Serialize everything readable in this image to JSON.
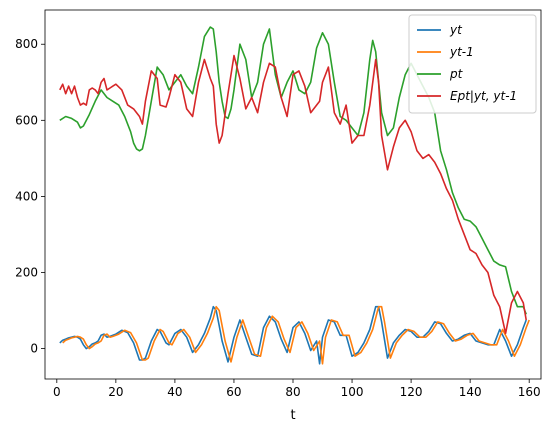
{
  "chart_data": {
    "type": "line",
    "title": "",
    "xlabel": "t",
    "ylabel": "",
    "xlim": [
      -4,
      164
    ],
    "ylim": [
      -80,
      890
    ],
    "x_ticks": [
      0,
      20,
      40,
      60,
      80,
      100,
      120,
      140,
      160
    ],
    "x_tick_labels": [
      "0",
      "20",
      "40",
      "60",
      "80",
      "100",
      "120",
      "140",
      "160"
    ],
    "y_ticks": [
      0,
      200,
      400,
      600,
      800
    ],
    "y_tick_labels": [
      "0",
      "200",
      "400",
      "600",
      "800"
    ],
    "grid": false,
    "legend": "top-right",
    "series": [
      {
        "name": "y_t",
        "label": "yt",
        "color": "#1f77b4",
        "x": [
          1,
          2,
          3,
          4,
          5,
          6,
          7,
          8,
          9,
          10,
          11,
          12,
          13,
          14,
          15,
          16,
          17,
          18,
          19,
          20,
          22,
          24,
          26,
          28,
          29,
          30,
          32,
          34,
          35,
          37,
          38,
          40,
          42,
          44,
          46,
          48,
          50,
          52,
          53,
          54,
          55,
          56,
          58,
          60,
          62,
          64,
          66,
          68,
          70,
          72,
          74,
          76,
          78,
          80,
          82,
          84,
          86,
          88,
          89,
          90,
          92,
          94,
          96,
          98,
          100,
          102,
          104,
          106,
          108,
          109,
          110,
          112,
          114,
          116,
          118,
          120,
          122,
          124,
          126,
          128,
          130,
          132,
          134,
          136,
          138,
          140,
          142,
          144,
          146,
          148,
          150,
          152,
          154,
          156,
          158,
          159
        ],
        "values": [
          15,
          22,
          25,
          28,
          30,
          32,
          30,
          25,
          10,
          0,
          5,
          12,
          15,
          20,
          35,
          38,
          30,
          32,
          35,
          38,
          48,
          42,
          15,
          -30,
          -30,
          -25,
          20,
          50,
          45,
          15,
          10,
          40,
          50,
          30,
          -10,
          10,
          40,
          80,
          110,
          100,
          60,
          20,
          -35,
          30,
          75,
          30,
          -15,
          -20,
          55,
          85,
          70,
          25,
          -10,
          55,
          70,
          40,
          -5,
          20,
          -40,
          30,
          75,
          70,
          35,
          35,
          -20,
          -10,
          15,
          50,
          110,
          110,
          70,
          -25,
          15,
          35,
          50,
          45,
          30,
          30,
          45,
          70,
          65,
          40,
          20,
          25,
          35,
          40,
          20,
          15,
          10,
          10,
          50,
          20,
          -20,
          10,
          55,
          75
        ]
      },
      {
        "name": "y_{t-1}",
        "label": "yt-1",
        "color": "#ff7f0e",
        "x": [
          2,
          3,
          4,
          5,
          6,
          7,
          8,
          9,
          10,
          11,
          12,
          13,
          14,
          15,
          16,
          17,
          18,
          19,
          20,
          21,
          23,
          25,
          27,
          29,
          30,
          31,
          33,
          35,
          36,
          38,
          39,
          41,
          43,
          45,
          47,
          49,
          51,
          53,
          54,
          55,
          56,
          57,
          59,
          61,
          63,
          65,
          67,
          69,
          71,
          73,
          75,
          77,
          79,
          81,
          83,
          85,
          87,
          89,
          90,
          91,
          93,
          95,
          97,
          99,
          101,
          103,
          105,
          107,
          109,
          110,
          111,
          113,
          115,
          117,
          119,
          121,
          123,
          125,
          127,
          129,
          131,
          133,
          135,
          137,
          139,
          141,
          143,
          145,
          147,
          149,
          151,
          153,
          155,
          157,
          159,
          160
        ],
        "values": [
          15,
          22,
          25,
          28,
          30,
          32,
          30,
          25,
          10,
          0,
          5,
          12,
          15,
          20,
          35,
          38,
          30,
          32,
          35,
          38,
          48,
          42,
          15,
          -30,
          -30,
          -25,
          20,
          50,
          45,
          15,
          10,
          40,
          50,
          30,
          -10,
          10,
          40,
          80,
          110,
          100,
          60,
          20,
          -35,
          30,
          75,
          30,
          -15,
          -20,
          55,
          85,
          70,
          25,
          -10,
          55,
          70,
          40,
          -5,
          20,
          -40,
          30,
          75,
          70,
          35,
          35,
          -20,
          -10,
          15,
          50,
          110,
          110,
          70,
          -25,
          15,
          35,
          50,
          45,
          30,
          30,
          45,
          70,
          65,
          40,
          20,
          25,
          35,
          40,
          20,
          15,
          10,
          10,
          50,
          20,
          -20,
          10,
          55,
          75
        ]
      },
      {
        "name": "p_t",
        "label": "pt",
        "color": "#2ca02c",
        "x": [
          1,
          3,
          5,
          7,
          8,
          9,
          11,
          13,
          15,
          17,
          19,
          21,
          23,
          25,
          26,
          27,
          28,
          29,
          30,
          32,
          34,
          36,
          38,
          40,
          42,
          44,
          46,
          48,
          50,
          52,
          53,
          54,
          55,
          56,
          57,
          58,
          59,
          60,
          62,
          64,
          66,
          68,
          70,
          72,
          74,
          76,
          78,
          80,
          82,
          84,
          86,
          88,
          90,
          92,
          94,
          96,
          98,
          100,
          102,
          104,
          106,
          107,
          108,
          110,
          112,
          114,
          116,
          118,
          120,
          122,
          124,
          126,
          128,
          130,
          132,
          134,
          136,
          138,
          140,
          142,
          144,
          146,
          148,
          150,
          152,
          154,
          156,
          158,
          159
        ],
        "values": [
          600,
          610,
          605,
          595,
          580,
          585,
          615,
          650,
          680,
          660,
          650,
          640,
          610,
          570,
          540,
          525,
          520,
          525,
          560,
          650,
          740,
          720,
          680,
          700,
          720,
          690,
          670,
          740,
          820,
          845,
          840,
          780,
          700,
          650,
          610,
          605,
          630,
          680,
          800,
          760,
          660,
          700,
          800,
          840,
          720,
          660,
          700,
          730,
          680,
          670,
          700,
          790,
          830,
          800,
          700,
          610,
          600,
          580,
          560,
          620,
          760,
          810,
          780,
          620,
          560,
          580,
          660,
          720,
          750,
          720,
          690,
          660,
          620,
          520,
          470,
          410,
          370,
          340,
          335,
          320,
          290,
          260,
          230,
          220,
          215,
          150,
          110,
          110,
          90
        ]
      },
      {
        "name": "Ep_t|y_t, y_{t-1}",
        "label": "Ept|yt, yt-1",
        "color": "#d62728",
        "x": [
          1,
          2,
          3,
          4,
          5,
          6,
          7,
          8,
          9,
          10,
          11,
          12,
          13,
          14,
          15,
          16,
          17,
          18,
          19,
          20,
          22,
          24,
          26,
          28,
          29,
          30,
          32,
          34,
          35,
          37,
          38,
          40,
          42,
          44,
          46,
          48,
          50,
          52,
          53,
          54,
          55,
          56,
          58,
          60,
          62,
          64,
          66,
          68,
          70,
          72,
          74,
          76,
          78,
          80,
          82,
          84,
          86,
          88,
          89,
          90,
          92,
          94,
          96,
          98,
          100,
          102,
          104,
          106,
          108,
          109,
          110,
          112,
          114,
          116,
          118,
          120,
          122,
          124,
          126,
          128,
          130,
          132,
          134,
          136,
          138,
          140,
          142,
          144,
          146,
          148,
          150,
          152,
          154,
          156,
          158,
          159
        ],
        "values": [
          680,
          695,
          670,
          690,
          670,
          690,
          660,
          640,
          645,
          640,
          680,
          685,
          680,
          670,
          700,
          710,
          680,
          685,
          690,
          695,
          680,
          640,
          630,
          610,
          590,
          650,
          730,
          710,
          640,
          635,
          660,
          720,
          700,
          630,
          610,
          700,
          760,
          710,
          690,
          590,
          540,
          560,
          670,
          770,
          710,
          630,
          660,
          620,
          700,
          750,
          740,
          660,
          610,
          720,
          730,
          690,
          620,
          640,
          650,
          700,
          740,
          620,
          590,
          640,
          540,
          560,
          560,
          640,
          760,
          700,
          560,
          470,
          530,
          580,
          600,
          570,
          520,
          500,
          510,
          490,
          460,
          420,
          390,
          340,
          300,
          260,
          250,
          220,
          200,
          140,
          110,
          40,
          120,
          150,
          120,
          75
        ]
      }
    ]
  }
}
